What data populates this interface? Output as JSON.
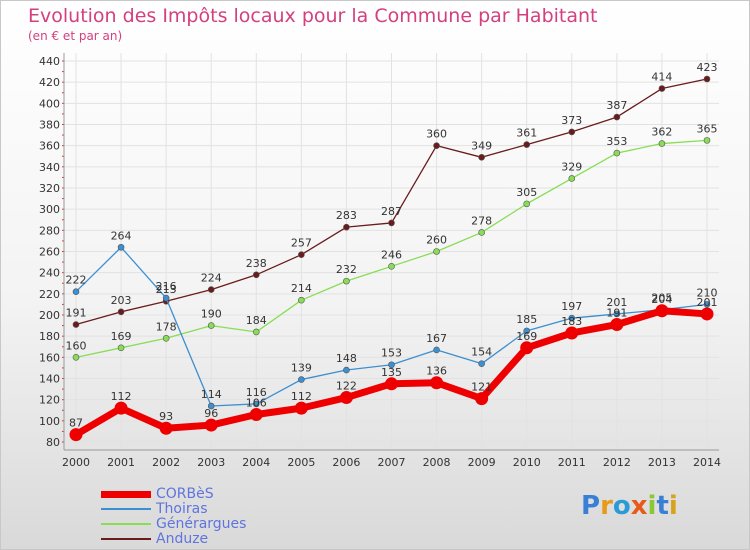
{
  "title": "Evolution des Impôts locaux pour la Commune par Habitant",
  "subtitle": "(en € et par an)",
  "logo": "Proxiti",
  "chart_data": {
    "type": "line",
    "title": "Evolution des Impôts locaux pour la Commune par Habitant",
    "subtitle": "(en € et par an)",
    "x": [
      2000,
      2001,
      2002,
      2003,
      2004,
      2005,
      2006,
      2007,
      2008,
      2009,
      2010,
      2011,
      2012,
      2013,
      2014
    ],
    "ylim": [
      80,
      440
    ],
    "yticks": [
      80,
      100,
      120,
      140,
      160,
      180,
      200,
      220,
      240,
      260,
      280,
      300,
      320,
      340,
      360,
      380,
      400,
      420,
      440
    ],
    "grid": true,
    "legend_position": "bottom-left",
    "series": [
      {
        "name": "CORBèS",
        "color": "#ee0000",
        "values": [
          87,
          112,
          93,
          96,
          106,
          112,
          122,
          135,
          136,
          121,
          169,
          183,
          191,
          204,
          201
        ]
      },
      {
        "name": "Thoiras",
        "color": "#3c8fd0",
        "values": [
          222,
          264,
          216,
          114,
          116,
          139,
          148,
          153,
          167,
          154,
          185,
          197,
          201,
          205,
          210
        ]
      },
      {
        "name": "Générargues",
        "color": "#88dd55",
        "values": [
          160,
          169,
          178,
          190,
          184,
          214,
          232,
          246,
          260,
          278,
          305,
          329,
          353,
          362,
          365
        ]
      },
      {
        "name": "Anduze",
        "color": "#6a1b1b",
        "values": [
          191,
          203,
          213,
          224,
          238,
          257,
          283,
          287,
          360,
          349,
          361,
          373,
          387,
          414,
          423
        ]
      }
    ]
  }
}
